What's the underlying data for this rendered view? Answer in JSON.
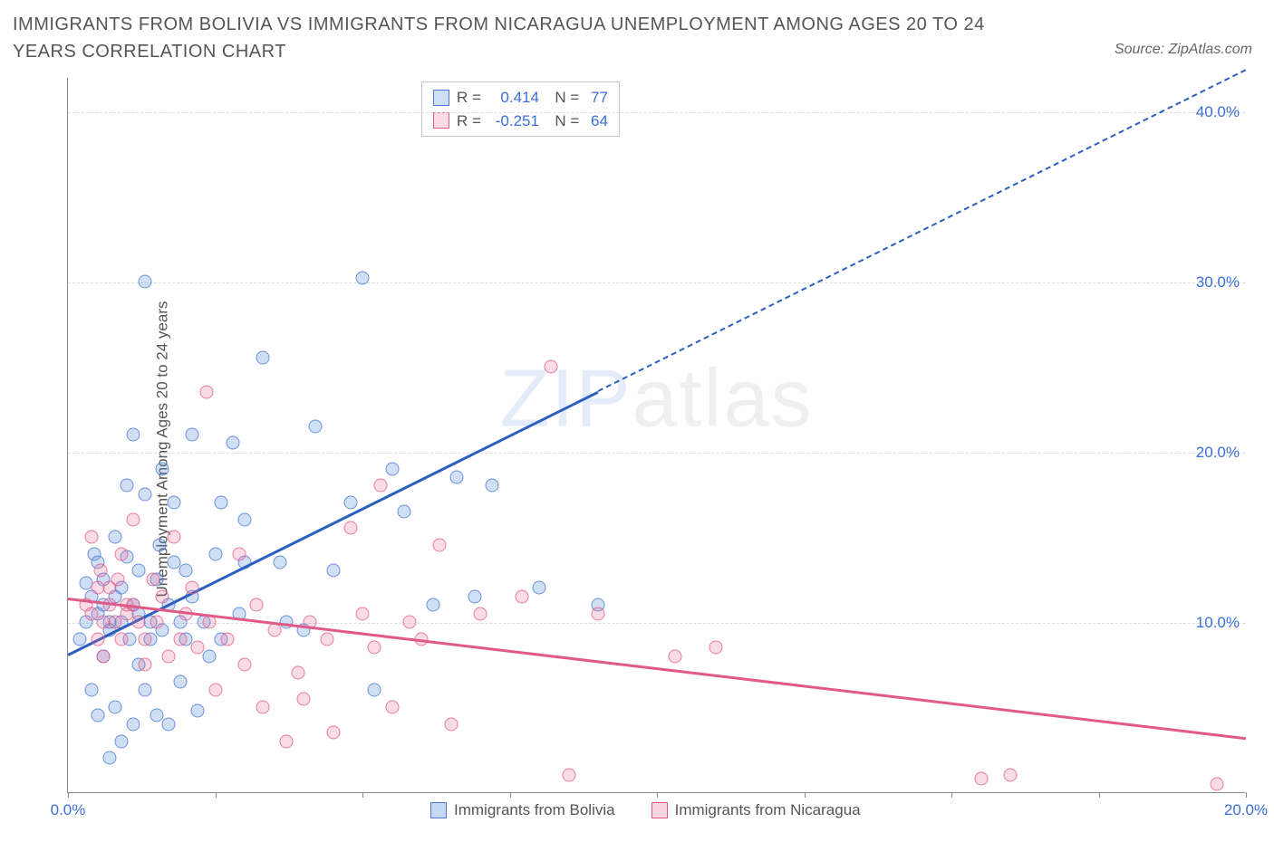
{
  "title": "IMMIGRANTS FROM BOLIVIA VS IMMIGRANTS FROM NICARAGUA UNEMPLOYMENT AMONG AGES 20 TO 24 YEARS CORRELATION CHART",
  "source": "Source: ZipAtlas.com",
  "ylabel": "Unemployment Among Ages 20 to 24 years",
  "watermark_a": "ZIP",
  "watermark_b": "atlas",
  "chart": {
    "type": "scatter",
    "xlim": [
      0,
      20
    ],
    "ylim": [
      0,
      42
    ],
    "x_ticks": [
      0,
      2.5,
      5,
      7.5,
      10,
      12.5,
      15,
      17.5,
      20
    ],
    "x_tick_labels": {
      "0": "0.0%",
      "20": "20.0%"
    },
    "y_ticks": [
      10,
      20,
      30,
      40
    ],
    "y_tick_labels": {
      "10": "10.0%",
      "20": "20.0%",
      "30": "30.0%",
      "40": "40.0%"
    },
    "grid_color": "#dddddd",
    "background_color": "#ffffff",
    "axis_color": "#888888",
    "tick_label_color": "#3a6fd8",
    "series": [
      {
        "name": "Immigrants from Bolivia",
        "color_fill": "rgba(90,140,220,0.28)",
        "color_stroke": "#4a78d2",
        "marker_radius": 7.5,
        "R": "0.414",
        "N": "77",
        "trend": {
          "x1": 0,
          "y1": 8.2,
          "x2": 20,
          "y2": 42.5,
          "solid_until_x": 9.0,
          "color": "#2b5fc0"
        },
        "points": [
          [
            0.2,
            9.0
          ],
          [
            0.3,
            12.3
          ],
          [
            0.3,
            10.0
          ],
          [
            0.4,
            6.0
          ],
          [
            0.4,
            11.5
          ],
          [
            0.45,
            14.0
          ],
          [
            0.5,
            4.5
          ],
          [
            0.5,
            10.5
          ],
          [
            0.5,
            13.5
          ],
          [
            0.6,
            8.0
          ],
          [
            0.6,
            11.0
          ],
          [
            0.6,
            12.5
          ],
          [
            0.7,
            2.0
          ],
          [
            0.7,
            9.5
          ],
          [
            0.7,
            10.0
          ],
          [
            0.8,
            5.0
          ],
          [
            0.8,
            11.5
          ],
          [
            0.8,
            15.0
          ],
          [
            0.9,
            3.0
          ],
          [
            0.9,
            10.0
          ],
          [
            0.9,
            12.0
          ],
          [
            1.0,
            13.8
          ],
          [
            1.0,
            18.0
          ],
          [
            1.05,
            9.0
          ],
          [
            1.1,
            4.0
          ],
          [
            1.1,
            11.0
          ],
          [
            1.1,
            21.0
          ],
          [
            1.2,
            7.5
          ],
          [
            1.2,
            10.5
          ],
          [
            1.2,
            13.0
          ],
          [
            1.3,
            17.5
          ],
          [
            1.3,
            30.0
          ],
          [
            1.3,
            6.0
          ],
          [
            1.4,
            9.0
          ],
          [
            1.4,
            10.0
          ],
          [
            1.5,
            4.5
          ],
          [
            1.5,
            12.5
          ],
          [
            1.55,
            14.5
          ],
          [
            1.6,
            19.0
          ],
          [
            1.6,
            9.5
          ],
          [
            1.7,
            4.0
          ],
          [
            1.7,
            11.0
          ],
          [
            1.8,
            13.5
          ],
          [
            1.8,
            17.0
          ],
          [
            1.9,
            10.0
          ],
          [
            1.9,
            6.5
          ],
          [
            2.0,
            13.0
          ],
          [
            2.0,
            9.0
          ],
          [
            2.1,
            21.0
          ],
          [
            2.1,
            11.5
          ],
          [
            2.2,
            4.8
          ],
          [
            2.3,
            10.0
          ],
          [
            2.4,
            8.0
          ],
          [
            2.5,
            14.0
          ],
          [
            2.6,
            17.0
          ],
          [
            2.6,
            9.0
          ],
          [
            2.8,
            20.5
          ],
          [
            2.9,
            10.5
          ],
          [
            3.0,
            13.5
          ],
          [
            3.0,
            16.0
          ],
          [
            3.3,
            25.5
          ],
          [
            3.6,
            13.5
          ],
          [
            3.7,
            10.0
          ],
          [
            4.0,
            9.5
          ],
          [
            4.2,
            21.5
          ],
          [
            4.5,
            13.0
          ],
          [
            4.8,
            17.0
          ],
          [
            5.0,
            30.2
          ],
          [
            5.2,
            6.0
          ],
          [
            5.5,
            19.0
          ],
          [
            5.7,
            16.5
          ],
          [
            6.2,
            11.0
          ],
          [
            6.6,
            18.5
          ],
          [
            6.9,
            11.5
          ],
          [
            7.2,
            18.0
          ],
          [
            8.0,
            12.0
          ],
          [
            9.0,
            11.0
          ]
        ]
      },
      {
        "name": "Immigrants from Nicaragua",
        "color_fill": "rgba(235,110,150,0.24)",
        "color_stroke": "#e15a87",
        "marker_radius": 7.5,
        "R": "-0.251",
        "N": "64",
        "trend": {
          "x1": 0,
          "y1": 11.5,
          "x2": 20,
          "y2": 3.3,
          "solid_until_x": 20,
          "color": "#e15a87"
        },
        "points": [
          [
            0.3,
            11.0
          ],
          [
            0.4,
            10.5
          ],
          [
            0.4,
            15.0
          ],
          [
            0.5,
            9.0
          ],
          [
            0.5,
            12.0
          ],
          [
            0.55,
            13.0
          ],
          [
            0.6,
            10.0
          ],
          [
            0.6,
            8.0
          ],
          [
            0.7,
            12.0
          ],
          [
            0.7,
            11.0
          ],
          [
            0.8,
            10.0
          ],
          [
            0.85,
            12.5
          ],
          [
            0.9,
            9.0
          ],
          [
            0.9,
            14.0
          ],
          [
            1.0,
            11.0
          ],
          [
            1.0,
            10.5
          ],
          [
            1.1,
            16.0
          ],
          [
            1.1,
            11.0
          ],
          [
            1.2,
            10.0
          ],
          [
            1.3,
            9.0
          ],
          [
            1.3,
            7.5
          ],
          [
            1.45,
            12.5
          ],
          [
            1.5,
            10.0
          ],
          [
            1.6,
            11.5
          ],
          [
            1.7,
            8.0
          ],
          [
            1.8,
            15.0
          ],
          [
            1.9,
            9.0
          ],
          [
            2.0,
            10.5
          ],
          [
            2.1,
            12.0
          ],
          [
            2.2,
            8.5
          ],
          [
            2.35,
            23.5
          ],
          [
            2.4,
            10.0
          ],
          [
            2.5,
            6.0
          ],
          [
            2.7,
            9.0
          ],
          [
            2.9,
            14.0
          ],
          [
            3.0,
            7.5
          ],
          [
            3.2,
            11.0
          ],
          [
            3.3,
            5.0
          ],
          [
            3.5,
            9.5
          ],
          [
            3.7,
            3.0
          ],
          [
            3.9,
            7.0
          ],
          [
            4.0,
            5.5
          ],
          [
            4.1,
            10.0
          ],
          [
            4.4,
            9.0
          ],
          [
            4.5,
            3.5
          ],
          [
            4.8,
            15.5
          ],
          [
            5.0,
            10.5
          ],
          [
            5.2,
            8.5
          ],
          [
            5.3,
            18.0
          ],
          [
            5.5,
            5.0
          ],
          [
            5.8,
            10.0
          ],
          [
            6.0,
            9.0
          ],
          [
            6.3,
            14.5
          ],
          [
            6.5,
            4.0
          ],
          [
            7.0,
            10.5
          ],
          [
            7.7,
            11.5
          ],
          [
            8.2,
            25.0
          ],
          [
            8.5,
            1.0
          ],
          [
            9.0,
            10.5
          ],
          [
            10.3,
            8.0
          ],
          [
            11.0,
            8.5
          ],
          [
            15.5,
            0.8
          ],
          [
            16.0,
            1.0
          ],
          [
            19.5,
            0.5
          ]
        ]
      }
    ],
    "legend_bottom": [
      {
        "label": "Immigrants from Bolivia",
        "fill": "rgba(90,140,220,0.35)",
        "stroke": "#4a78d2"
      },
      {
        "label": "Immigrants from Nicaragua",
        "fill": "rgba(235,110,150,0.30)",
        "stroke": "#e15a87"
      }
    ]
  }
}
